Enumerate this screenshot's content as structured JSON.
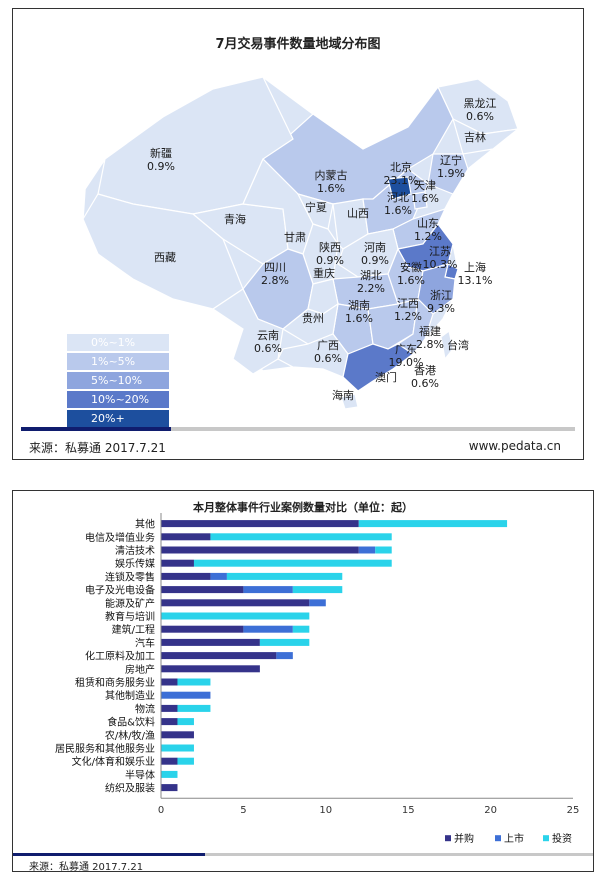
{
  "map": {
    "title": "7月交易事件数量地域分布图",
    "legend": [
      {
        "label": "0%~1%",
        "color": "#dbe5f5"
      },
      {
        "label": "1%~5%",
        "color": "#b9c9ec"
      },
      {
        "label": "5%~10%",
        "color": "#8ea5de"
      },
      {
        "label": "10%~20%",
        "color": "#5b79c9"
      },
      {
        "label": "20%+",
        "color": "#1d4f9e"
      }
    ],
    "regions": [
      {
        "name": "黑龙江",
        "pct": "0.6%"
      },
      {
        "name": "吉林",
        "pct": ""
      },
      {
        "name": "辽宁",
        "pct": "1.9%"
      },
      {
        "name": "新疆",
        "pct": "0.9%"
      },
      {
        "name": "内蒙古",
        "pct": "1.6%"
      },
      {
        "name": "北京",
        "pct": "23.1%"
      },
      {
        "name": "天津",
        "pct": "1.6%"
      },
      {
        "name": "河北",
        "pct": "1.6%"
      },
      {
        "name": "宁夏",
        "pct": ""
      },
      {
        "name": "青海",
        "pct": ""
      },
      {
        "name": "山西",
        "pct": ""
      },
      {
        "name": "山东",
        "pct": "1.2%"
      },
      {
        "name": "甘肃",
        "pct": ""
      },
      {
        "name": "西藏",
        "pct": ""
      },
      {
        "name": "陕西",
        "pct": "0.9%"
      },
      {
        "name": "河南",
        "pct": "0.9%"
      },
      {
        "name": "江苏",
        "pct": "10.3%"
      },
      {
        "name": "安徽",
        "pct": "1.6%"
      },
      {
        "name": "上海",
        "pct": "13.1%"
      },
      {
        "name": "四川",
        "pct": "2.8%"
      },
      {
        "name": "重庆",
        "pct": ""
      },
      {
        "name": "湖北",
        "pct": "2.2%"
      },
      {
        "name": "浙江",
        "pct": "9.3%"
      },
      {
        "name": "贵州",
        "pct": ""
      },
      {
        "name": "湖南",
        "pct": "1.6%"
      },
      {
        "name": "江西",
        "pct": "1.2%"
      },
      {
        "name": "云南",
        "pct": "0.6%"
      },
      {
        "name": "福建",
        "pct": "2.8%"
      },
      {
        "name": "台湾",
        "pct": ""
      },
      {
        "name": "广西",
        "pct": "0.6%"
      },
      {
        "name": "广东",
        "pct": "19.0%"
      },
      {
        "name": "香港",
        "pct": "0.6%"
      },
      {
        "name": "澳门",
        "pct": ""
      },
      {
        "name": "海南",
        "pct": ""
      }
    ],
    "source": "来源：私募通 2017.7.21",
    "site": "www.pedata.cn"
  },
  "bar_panel": {
    "source": "来源：私募通   2017.7.21"
  },
  "chart_data": {
    "type": "bar",
    "orientation": "horizontal",
    "stacked": true,
    "title": "本月整体事件行业案例数量对比（单位：起）",
    "categories": [
      "其他",
      "电信及增值业务",
      "清洁技术",
      "娱乐传媒",
      "连锁及零售",
      "电子及光电设备",
      "能源及矿产",
      "教育与培训",
      "建筑/工程",
      "汽车",
      "化工原料及加工",
      "房地产",
      "租赁和商务服务业",
      "其他制造业",
      "物流",
      "食品&饮料",
      "农/林/牧/渔",
      "居民服务和其他服务业",
      "文化/体育和娱乐业",
      "半导体",
      "纺织及服装"
    ],
    "series": [
      {
        "name": "并购",
        "color": "#35338a",
        "values": [
          12,
          3,
          12,
          2,
          3,
          5,
          9,
          0,
          5,
          6,
          7,
          6,
          1,
          0,
          1,
          1,
          2,
          0,
          1,
          0,
          1
        ]
      },
      {
        "name": "上市",
        "color": "#3d6fd6",
        "values": [
          0,
          0,
          1,
          0,
          1,
          3,
          1,
          0,
          3,
          0,
          1,
          0,
          0,
          3,
          0,
          0,
          0,
          0,
          0,
          0,
          0
        ]
      },
      {
        "name": "投资",
        "color": "#2ad3ea",
        "values": [
          9,
          11,
          1,
          12,
          7,
          3,
          0,
          9,
          1,
          3,
          0,
          0,
          2,
          0,
          2,
          1,
          0,
          2,
          1,
          1,
          0
        ]
      }
    ],
    "xlim": [
      0,
      25
    ],
    "xticks": [
      0,
      5,
      10,
      15,
      20,
      25
    ],
    "legend_position": "bottom-right",
    "grid": false
  }
}
